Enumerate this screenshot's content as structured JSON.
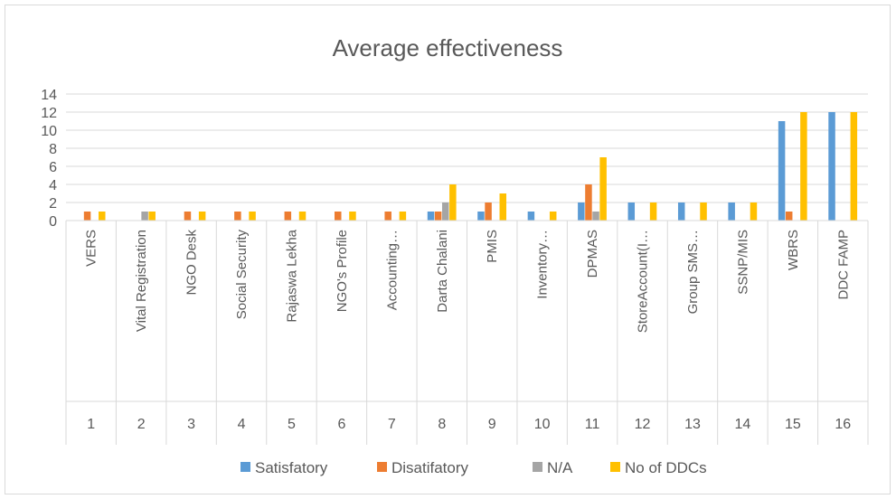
{
  "chart_data": {
    "type": "bar",
    "title": "Average effectiveness",
    "xlabel": "",
    "ylabel": "",
    "ylim": [
      0,
      14
    ],
    "yticks": [
      0,
      2,
      4,
      6,
      8,
      10,
      12,
      14
    ],
    "grid": true,
    "legend_position": "bottom",
    "categories": [
      "VERS",
      "Vital Registration",
      "NGO Desk",
      "Social Security",
      "Rajaswa Lekha",
      "NGO's Profile",
      "Accounting…",
      "Darta Chalani",
      "PMIS",
      "Inventory…",
      "DPMAS",
      "StoreAccount(I…",
      "Group SMS…",
      "SSNP/MIS",
      "WBRS",
      "DDC FAMP"
    ],
    "index_labels": [
      "1",
      "2",
      "3",
      "4",
      "5",
      "6",
      "7",
      "8",
      "9",
      "10",
      "11",
      "12",
      "13",
      "14",
      "15",
      "16"
    ],
    "series": [
      {
        "name": "Satisfatory",
        "color": "#5b9bd5",
        "values": [
          0,
          0,
          0,
          0,
          0,
          0,
          0,
          1,
          1,
          1,
          2,
          2,
          2,
          2,
          11,
          12
        ]
      },
      {
        "name": "Disatifatory",
        "color": "#ed7d31",
        "values": [
          1,
          0,
          1,
          1,
          1,
          1,
          1,
          1,
          2,
          0,
          4,
          0,
          0,
          0,
          1,
          0
        ]
      },
      {
        "name": "N/A",
        "color": "#a5a5a5",
        "values": [
          0,
          1,
          0,
          0,
          0,
          0,
          0,
          2,
          0,
          0,
          1,
          0,
          0,
          0,
          0,
          0
        ]
      },
      {
        "name": "No of DDCs",
        "color": "#ffc000",
        "values": [
          1,
          1,
          1,
          1,
          1,
          1,
          1,
          4,
          3,
          1,
          7,
          2,
          2,
          2,
          12,
          12
        ]
      }
    ]
  }
}
